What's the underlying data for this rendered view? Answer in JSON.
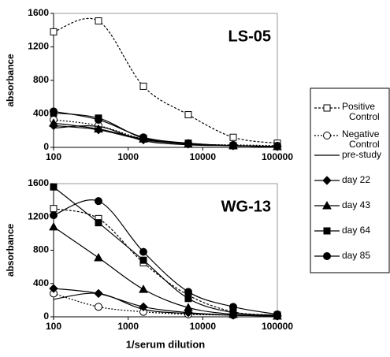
{
  "chart_data": [
    {
      "type": "line",
      "title": "LS-05",
      "y_label": "absorbance",
      "log_x": true,
      "x": [
        100,
        400,
        1600,
        6400,
        25600,
        100000
      ],
      "xlim": [
        100,
        100000
      ],
      "xticks": [
        100,
        1000,
        10000,
        100000
      ],
      "ylim": [
        0,
        1600
      ],
      "yticks": [
        0,
        400,
        800,
        1200,
        1600
      ],
      "series": [
        {
          "name": "Positive Control",
          "values": [
            1380,
            1510,
            730,
            390,
            120,
            50
          ]
        },
        {
          "name": "Negative Control",
          "values": [
            330,
            260,
            100,
            40,
            30,
            20
          ]
        },
        {
          "name": "pre-study",
          "values": [
            230,
            250,
            80,
            30,
            20,
            10
          ]
        },
        {
          "name": "day 22",
          "values": [
            260,
            210,
            90,
            40,
            20,
            10
          ]
        },
        {
          "name": "day 43",
          "values": [
            290,
            220,
            100,
            40,
            20,
            10
          ]
        },
        {
          "name": "day 64",
          "values": [
            410,
            350,
            110,
            50,
            20,
            10
          ]
        },
        {
          "name": "day 85",
          "values": [
            430,
            330,
            120,
            50,
            20,
            10
          ]
        }
      ]
    },
    {
      "type": "line",
      "title": "WG-13",
      "y_label": "absorbance",
      "x_label": "1/serum dilution",
      "log_x": true,
      "x": [
        100,
        400,
        1600,
        6400,
        25600,
        100000
      ],
      "xlim": [
        100,
        100000
      ],
      "xticks": [
        100,
        1000,
        10000,
        100000
      ],
      "ylim": [
        0,
        1600
      ],
      "yticks": [
        0,
        400,
        800,
        1200,
        1600
      ],
      "series": [
        {
          "values": [
            1300,
            1180,
            650,
            260,
            60,
            20
          ]
        },
        {
          "values": [
            280,
            120,
            60,
            30,
            20,
            10
          ]
        },
        {
          "values": [
            210,
            280,
            90,
            40,
            20,
            10
          ]
        },
        {
          "values": [
            340,
            280,
            120,
            50,
            20,
            10
          ]
        },
        {
          "values": [
            1080,
            710,
            330,
            110,
            30,
            10
          ]
        },
        {
          "values": [
            1560,
            1130,
            680,
            220,
            50,
            20
          ]
        },
        {
          "values": [
            1220,
            1390,
            780,
            300,
            120,
            30
          ]
        }
      ]
    }
  ]
}
